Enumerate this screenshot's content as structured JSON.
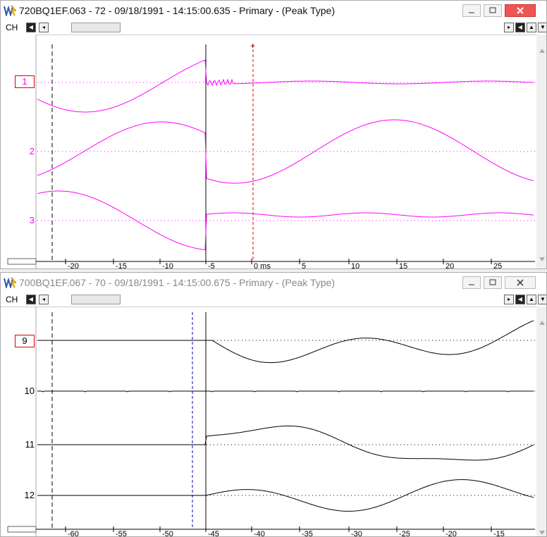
{
  "window1": {
    "title": "720BQ1EF.063 - 72 - 09/18/1991 - 14:15:00.635 - Primary - (Peak Type)",
    "ch_label": "CH",
    "channels": [
      {
        "label": "1",
        "selected": true
      },
      {
        "label": "2",
        "selected": false
      },
      {
        "label": "3",
        "selected": false
      }
    ],
    "trace_color": "#ff00ff",
    "axis_ticks": [
      "-20",
      "-15",
      "-10",
      "-5",
      "0 ms",
      "5",
      "10",
      "15",
      "20",
      "25"
    ],
    "cursor_color": "#e00000"
  },
  "window2": {
    "title": "700BQ1EF.067 - 70 - 09/18/1991 - 14:15:00.675 - Primary - (Peak Type)",
    "ch_label": "CH",
    "channels": [
      {
        "label": "9",
        "selected": true
      },
      {
        "label": "10",
        "selected": false
      },
      {
        "label": "11",
        "selected": false
      },
      {
        "label": "12",
        "selected": false
      }
    ],
    "trace_color": "#000000",
    "axis_ticks": [
      "-60",
      "-55",
      "-50",
      "-45",
      "-40",
      "-35",
      "-30",
      "-25",
      "-20",
      "-15"
    ],
    "cursor_color": "#0000cc"
  }
}
